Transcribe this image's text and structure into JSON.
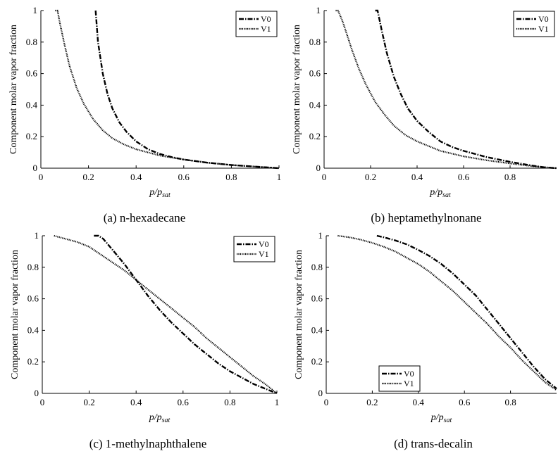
{
  "figure": {
    "captions": [
      "(a) n-hexadecane",
      "(b) heptamethylnonane",
      "(c) 1-methylnaphthalene",
      "(d) trans-decalin"
    ]
  },
  "chart_data": [
    {
      "type": "line",
      "panel": "a",
      "caption": "(a) n-hexadecane",
      "title": "",
      "xlabel": "p/p_sat",
      "ylabel": "Component molar vapor fraction",
      "xlim": [
        0,
        1
      ],
      "ylim": [
        0,
        1
      ],
      "xticks": [
        "0",
        "0.2",
        "0.4",
        "0.6",
        "0.8",
        "1"
      ],
      "yticks": [
        "0",
        "0.2",
        "0.4",
        "0.6",
        "0.8",
        "1"
      ],
      "grid": false,
      "legend": "top-right",
      "series": [
        {
          "name": "V0",
          "style": "dash-dot",
          "color": "#000000",
          "x": [
            0.23,
            0.24,
            0.26,
            0.28,
            0.3,
            0.33,
            0.36,
            0.4,
            0.45,
            0.5,
            0.55,
            0.6,
            0.7,
            0.8,
            0.9,
            1.0
          ],
          "y": [
            1.0,
            0.8,
            0.6,
            0.47,
            0.38,
            0.29,
            0.23,
            0.17,
            0.12,
            0.09,
            0.07,
            0.055,
            0.035,
            0.02,
            0.01,
            0.0
          ]
        },
        {
          "name": "V1",
          "style": "dotted",
          "color": "#000000",
          "x": [
            0.06,
            0.07,
            0.08,
            0.1,
            0.12,
            0.15,
            0.18,
            0.22,
            0.26,
            0.3,
            0.35,
            0.4,
            0.5,
            0.6,
            0.7,
            0.8,
            0.9,
            1.0
          ],
          "y": [
            1.0,
            1.0,
            0.92,
            0.78,
            0.65,
            0.51,
            0.41,
            0.31,
            0.24,
            0.19,
            0.15,
            0.12,
            0.08,
            0.055,
            0.035,
            0.02,
            0.01,
            0.0
          ]
        }
      ]
    },
    {
      "type": "line",
      "panel": "b",
      "caption": "(b) heptamethylnonane",
      "title": "",
      "xlabel": "p/p_sat",
      "ylabel": "Component molar vapor fraction",
      "xlim": [
        0,
        1
      ],
      "ylim": [
        0,
        1
      ],
      "xticks": [
        "0",
        "0.2",
        "0.4",
        "0.6",
        "0.8"
      ],
      "yticks": [
        "0",
        "0.2",
        "0.4",
        "0.6",
        "0.8",
        "1"
      ],
      "grid": false,
      "legend": "top-right",
      "series": [
        {
          "name": "V0",
          "style": "dash-dot",
          "color": "#000000",
          "x": [
            0.22,
            0.23,
            0.25,
            0.27,
            0.3,
            0.33,
            0.36,
            0.4,
            0.45,
            0.5,
            0.55,
            0.6,
            0.7,
            0.8,
            0.9,
            0.95,
            1.0
          ],
          "y": [
            1.0,
            1.0,
            0.86,
            0.73,
            0.58,
            0.47,
            0.38,
            0.3,
            0.23,
            0.17,
            0.135,
            0.11,
            0.07,
            0.04,
            0.015,
            0.005,
            0.0
          ]
        },
        {
          "name": "V1",
          "style": "dotted",
          "color": "#000000",
          "x": [
            0.05,
            0.06,
            0.08,
            0.1,
            0.12,
            0.15,
            0.18,
            0.22,
            0.26,
            0.3,
            0.35,
            0.4,
            0.5,
            0.6,
            0.7,
            0.8,
            0.9,
            1.0
          ],
          "y": [
            1.0,
            1.0,
            0.93,
            0.84,
            0.75,
            0.63,
            0.53,
            0.42,
            0.34,
            0.27,
            0.21,
            0.17,
            0.11,
            0.075,
            0.05,
            0.03,
            0.012,
            0.0
          ]
        }
      ]
    },
    {
      "type": "line",
      "panel": "c",
      "caption": "(c) 1-methylnaphthalene",
      "title": "",
      "xlabel": "p/p_sat",
      "ylabel": "Component molar vapor fraction",
      "xlim": [
        0,
        1
      ],
      "ylim": [
        0,
        1
      ],
      "xticks": [
        "0",
        "0.2",
        "0.4",
        "0.6",
        "0.8",
        "1"
      ],
      "yticks": [
        "0",
        "0.2",
        "0.4",
        "0.6",
        "0.8",
        "1"
      ],
      "grid": false,
      "legend": "top-right",
      "series": [
        {
          "name": "V0",
          "style": "dash-dot",
          "color": "#000000",
          "x": [
            0.22,
            0.24,
            0.26,
            0.3,
            0.35,
            0.4,
            0.45,
            0.5,
            0.55,
            0.6,
            0.65,
            0.7,
            0.75,
            0.8,
            0.85,
            0.9,
            0.95,
            1.0
          ],
          "y": [
            1.0,
            1.0,
            0.98,
            0.91,
            0.82,
            0.72,
            0.62,
            0.53,
            0.45,
            0.38,
            0.31,
            0.25,
            0.19,
            0.14,
            0.1,
            0.06,
            0.03,
            0.0
          ]
        },
        {
          "name": "V1",
          "style": "dotted",
          "color": "#000000",
          "x": [
            0.05,
            0.1,
            0.15,
            0.2,
            0.25,
            0.3,
            0.35,
            0.4,
            0.45,
            0.5,
            0.55,
            0.6,
            0.65,
            0.7,
            0.75,
            0.8,
            0.85,
            0.9,
            0.95,
            1.0
          ],
          "y": [
            1.0,
            0.98,
            0.96,
            0.93,
            0.88,
            0.83,
            0.78,
            0.72,
            0.66,
            0.6,
            0.54,
            0.48,
            0.42,
            0.35,
            0.29,
            0.23,
            0.17,
            0.11,
            0.06,
            0.0
          ]
        }
      ]
    },
    {
      "type": "line",
      "panel": "d",
      "caption": "(d) trans-decalin",
      "title": "",
      "xlabel": "p/p_sat",
      "ylabel": "Component molar vapor fraction",
      "xlim": [
        0,
        1
      ],
      "ylim": [
        0,
        1
      ],
      "xticks": [
        "0",
        "0.2",
        "0.4",
        "0.6",
        "0.8"
      ],
      "yticks": [
        "0",
        "0.2",
        "0.4",
        "0.6",
        "0.8",
        "1"
      ],
      "grid": false,
      "legend": "bottom-left",
      "series": [
        {
          "name": "V0",
          "style": "dash-dot",
          "color": "#000000",
          "x": [
            0.22,
            0.25,
            0.3,
            0.35,
            0.4,
            0.45,
            0.5,
            0.55,
            0.6,
            0.65,
            0.7,
            0.75,
            0.8,
            0.85,
            0.9,
            0.95,
            1.0
          ],
          "y": [
            1.0,
            0.99,
            0.97,
            0.945,
            0.91,
            0.87,
            0.82,
            0.76,
            0.69,
            0.62,
            0.53,
            0.44,
            0.35,
            0.26,
            0.17,
            0.09,
            0.03
          ]
        },
        {
          "name": "V1",
          "style": "dotted",
          "color": "#000000",
          "x": [
            0.05,
            0.1,
            0.15,
            0.2,
            0.25,
            0.3,
            0.35,
            0.4,
            0.45,
            0.5,
            0.55,
            0.6,
            0.65,
            0.7,
            0.75,
            0.8,
            0.85,
            0.9,
            0.95,
            1.0
          ],
          "y": [
            1.0,
            0.99,
            0.975,
            0.955,
            0.93,
            0.9,
            0.86,
            0.82,
            0.77,
            0.71,
            0.65,
            0.58,
            0.51,
            0.44,
            0.36,
            0.29,
            0.21,
            0.14,
            0.07,
            0.02
          ]
        }
      ]
    }
  ]
}
